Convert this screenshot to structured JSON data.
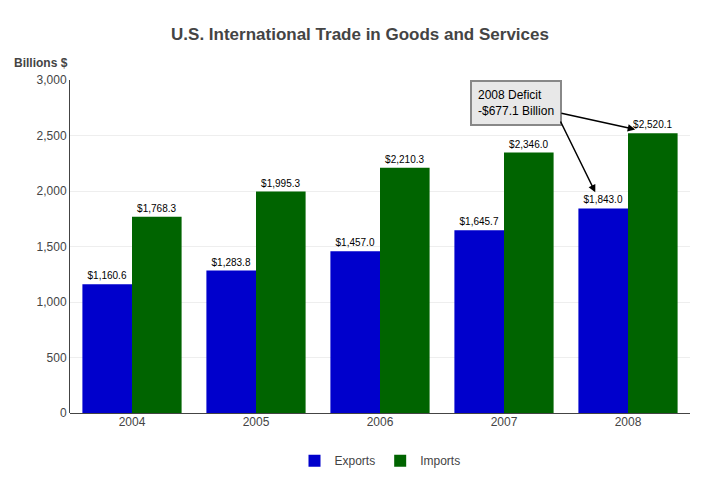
{
  "chart_data": {
    "type": "bar",
    "title": "U.S. International Trade in Goods and Services",
    "ylabel": "Billions $",
    "categories": [
      "2004",
      "2005",
      "2006",
      "2007",
      "2008"
    ],
    "series": [
      {
        "name": "Exports",
        "color": "#0000CC",
        "values": [
          1160.6,
          1283.8,
          1457.0,
          1645.7,
          1843.0
        ],
        "value_labels": [
          "$1,160.6",
          "$1,283.8",
          "$1,457.0",
          "$1,645.7",
          "$1,843.0"
        ]
      },
      {
        "name": "Imports",
        "color": "#006400",
        "values": [
          1768.3,
          1995.3,
          2210.3,
          2346.0,
          2520.1
        ],
        "value_labels": [
          "$1,768.3",
          "$1,995.3",
          "$2,210.3",
          "$2,346.0",
          "$2,520.1"
        ]
      }
    ],
    "ylim": [
      0,
      3000
    ],
    "yticks": [
      0,
      500,
      {
        "value": 1000,
        "label": "1,000"
      },
      {
        "value": 1500,
        "label": "1,500"
      },
      {
        "value": 2000,
        "label": "2,000"
      },
      {
        "value": 2500,
        "label": "2,500"
      },
      {
        "value": 3000,
        "label": "3,000"
      }
    ],
    "grid": true,
    "legend": "bottom",
    "data_labels": true,
    "annotations": [
      {
        "text": "2008 Deficit\n-$677.1 Billion"
      }
    ]
  }
}
